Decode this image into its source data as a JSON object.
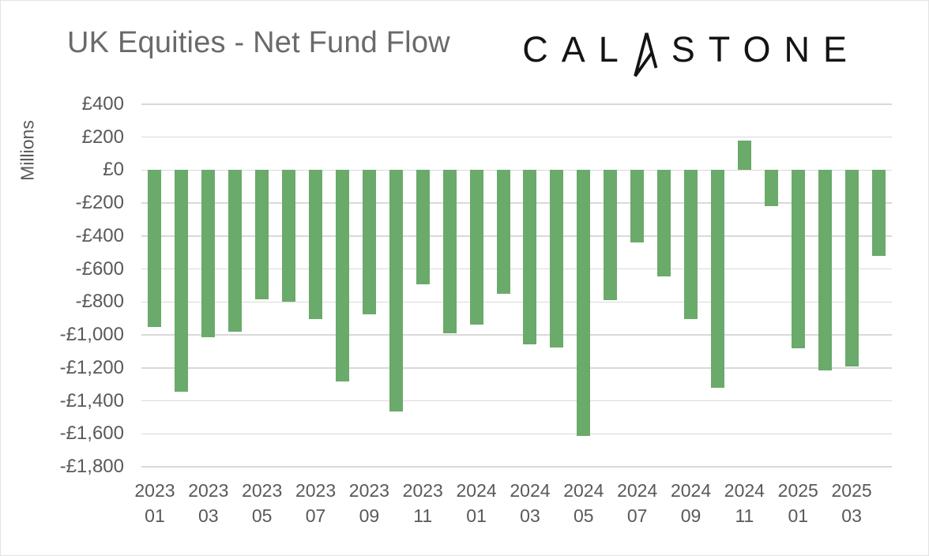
{
  "header": {
    "title": "UK Equities - Net Fund Flow",
    "logo": {
      "text": "CALASTONE",
      "prefix": "CAL",
      "suffix": "STONE",
      "stylized_letter": "A"
    }
  },
  "chart_data": {
    "type": "bar",
    "title": "UK Equities - Net Fund Flow",
    "ylabel": "Millions",
    "unit": "GBP millions",
    "legend": "none",
    "grid": "horizontal",
    "bar_color": "#6aaa6a",
    "grid_color": "#d9d9d9",
    "axis_text_color": "#595959",
    "ylim": [
      -1800,
      400
    ],
    "ytick_step": 200,
    "ytick_labels": [
      "£400",
      "£200",
      "£0",
      "-£200",
      "-£400",
      "-£600",
      "-£800",
      "-£1,000",
      "-£1,200",
      "-£1,400",
      "-£1,600",
      "-£1,800"
    ],
    "categories": [
      "2023-01",
      "2023-02",
      "2023-03",
      "2023-04",
      "2023-05",
      "2023-06",
      "2023-07",
      "2023-08",
      "2023-09",
      "2023-10",
      "2023-11",
      "2023-12",
      "2024-01",
      "2024-02",
      "2024-03",
      "2024-04",
      "2024-05",
      "2024-06",
      "2024-07",
      "2024-08",
      "2024-09",
      "2024-10",
      "2024-11",
      "2024-12",
      "2025-01",
      "2025-02",
      "2025-03",
      "2025-04"
    ],
    "values": [
      -950,
      -1345,
      -1015,
      -980,
      -785,
      -800,
      -905,
      -1280,
      -875,
      -1465,
      -695,
      -990,
      -935,
      -750,
      -1055,
      -1075,
      -1615,
      -790,
      -440,
      -645,
      -905,
      -1320,
      180,
      -220,
      -1080,
      -1215,
      -1190,
      -520
    ],
    "xticks": [
      {
        "index": 0,
        "year": "2023",
        "month": "01"
      },
      {
        "index": 2,
        "year": "2023",
        "month": "03"
      },
      {
        "index": 4,
        "year": "2023",
        "month": "05"
      },
      {
        "index": 6,
        "year": "2023",
        "month": "07"
      },
      {
        "index": 8,
        "year": "2023",
        "month": "09"
      },
      {
        "index": 10,
        "year": "2023",
        "month": "11"
      },
      {
        "index": 12,
        "year": "2024",
        "month": "01"
      },
      {
        "index": 14,
        "year": "2024",
        "month": "03"
      },
      {
        "index": 16,
        "year": "2024",
        "month": "05"
      },
      {
        "index": 18,
        "year": "2024",
        "month": "07"
      },
      {
        "index": 20,
        "year": "2024",
        "month": "09"
      },
      {
        "index": 22,
        "year": "2024",
        "month": "11"
      },
      {
        "index": 24,
        "year": "2025",
        "month": "01"
      },
      {
        "index": 26,
        "year": "2025",
        "month": "03"
      }
    ]
  }
}
